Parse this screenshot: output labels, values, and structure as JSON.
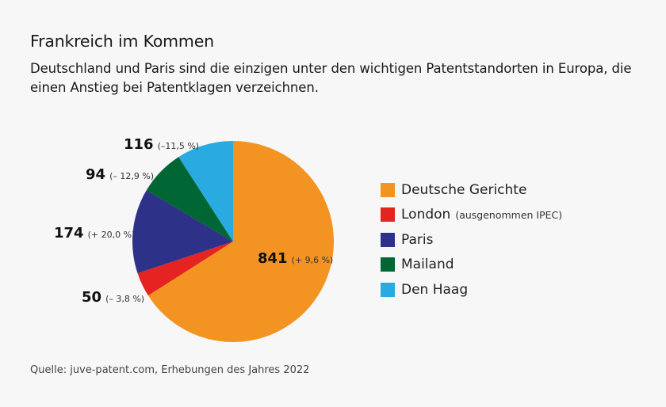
{
  "header": {
    "title": "Frankreich im Kommen",
    "subtitle": "Deutschland und Paris sind die einzigen unter den wichtigen Patentstandorten in Europa, die einen Anstieg bei Patentklagen verzeichnen."
  },
  "footer": {
    "source": "Quelle: juve-patent.com, Erhebungen des Jahres 2022"
  },
  "chart_data": {
    "type": "pie",
    "title": "Frankreich im Kommen",
    "slices": [
      {
        "label": "Deutsche  Gerichte",
        "note": "",
        "value": 841,
        "change": "(+ 9,6 %)",
        "color": "#f39322"
      },
      {
        "label": "London",
        "note": "(ausgenommen IPEC)",
        "value": 50,
        "change": "(– 3,8 %)",
        "color": "#e52421"
      },
      {
        "label": "Paris",
        "note": "",
        "value": 174,
        "change": "(+ 20,0 %)",
        "color": "#2e3188"
      },
      {
        "label": "Mailand",
        "note": "",
        "value": 94,
        "change": "(– 12,9 %)",
        "color": "#006633"
      },
      {
        "label": "Den Haag",
        "note": "",
        "value": 116,
        "change": "(–11,5 %)",
        "color": "#29abe2"
      }
    ],
    "legend_position": "right",
    "direction": "clockwise",
    "start": "top"
  }
}
